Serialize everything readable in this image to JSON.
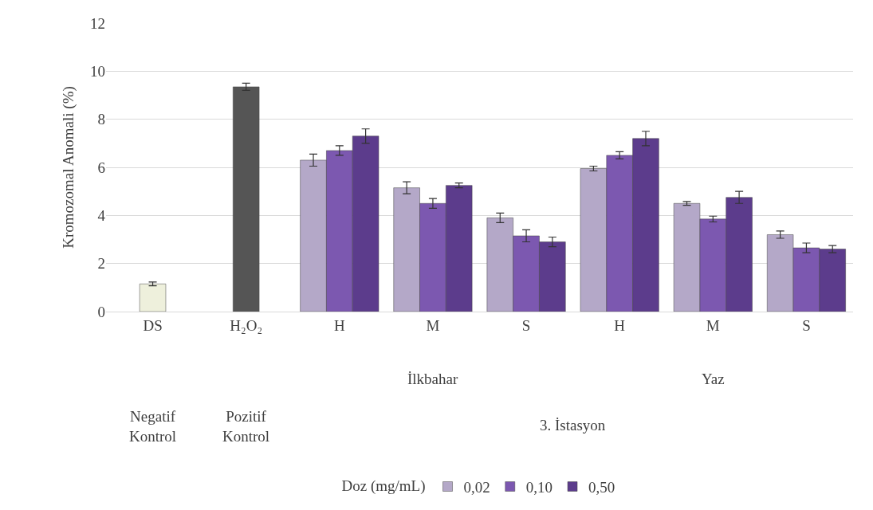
{
  "chart_data": {
    "type": "bar",
    "ylabel": "Kromozomal Anomali (%)",
    "legend_title": "Doz (mg/mL)",
    "categories": [
      "DS",
      "H₂O₂",
      "H",
      "M",
      "S",
      "H",
      "M",
      "S"
    ],
    "series": [
      {
        "colors": [
          "#eef0dc",
          "#555555",
          null,
          null,
          null,
          null,
          null,
          null
        ],
        "values": [
          1.15,
          9.35,
          null,
          null,
          null,
          null,
          null,
          null
        ],
        "errors": [
          0.08,
          0.15,
          null,
          null,
          null,
          null,
          null,
          null
        ]
      },
      {
        "name": "0,02",
        "color": "#b4a8c8",
        "values": [
          null,
          null,
          6.3,
          5.15,
          3.9,
          5.95,
          4.5,
          3.2
        ],
        "errors": [
          null,
          null,
          0.25,
          0.25,
          0.2,
          0.1,
          0.08,
          0.15
        ]
      },
      {
        "name": "0,10",
        "color": "#7c58b0",
        "values": [
          null,
          null,
          6.7,
          4.5,
          3.15,
          6.5,
          3.85,
          2.65
        ],
        "errors": [
          null,
          null,
          0.2,
          0.2,
          0.25,
          0.15,
          0.12,
          0.2
        ]
      },
      {
        "name": "0,50",
        "color": "#5c3c8c",
        "values": [
          null,
          null,
          7.3,
          5.25,
          2.9,
          7.2,
          4.75,
          2.6
        ],
        "errors": [
          null,
          null,
          0.3,
          0.1,
          0.2,
          0.3,
          0.25,
          0.15
        ]
      }
    ],
    "ylim": [
      0,
      12
    ],
    "yticks": [
      0,
      2,
      4,
      6,
      8,
      10,
      12
    ],
    "grid": "y",
    "legend": "bottom",
    "annotations": [
      "İlkbahar",
      "Yaz",
      "Negatif Kontrol",
      "Pozitif Kontrol",
      "3. İstasyon"
    ]
  }
}
